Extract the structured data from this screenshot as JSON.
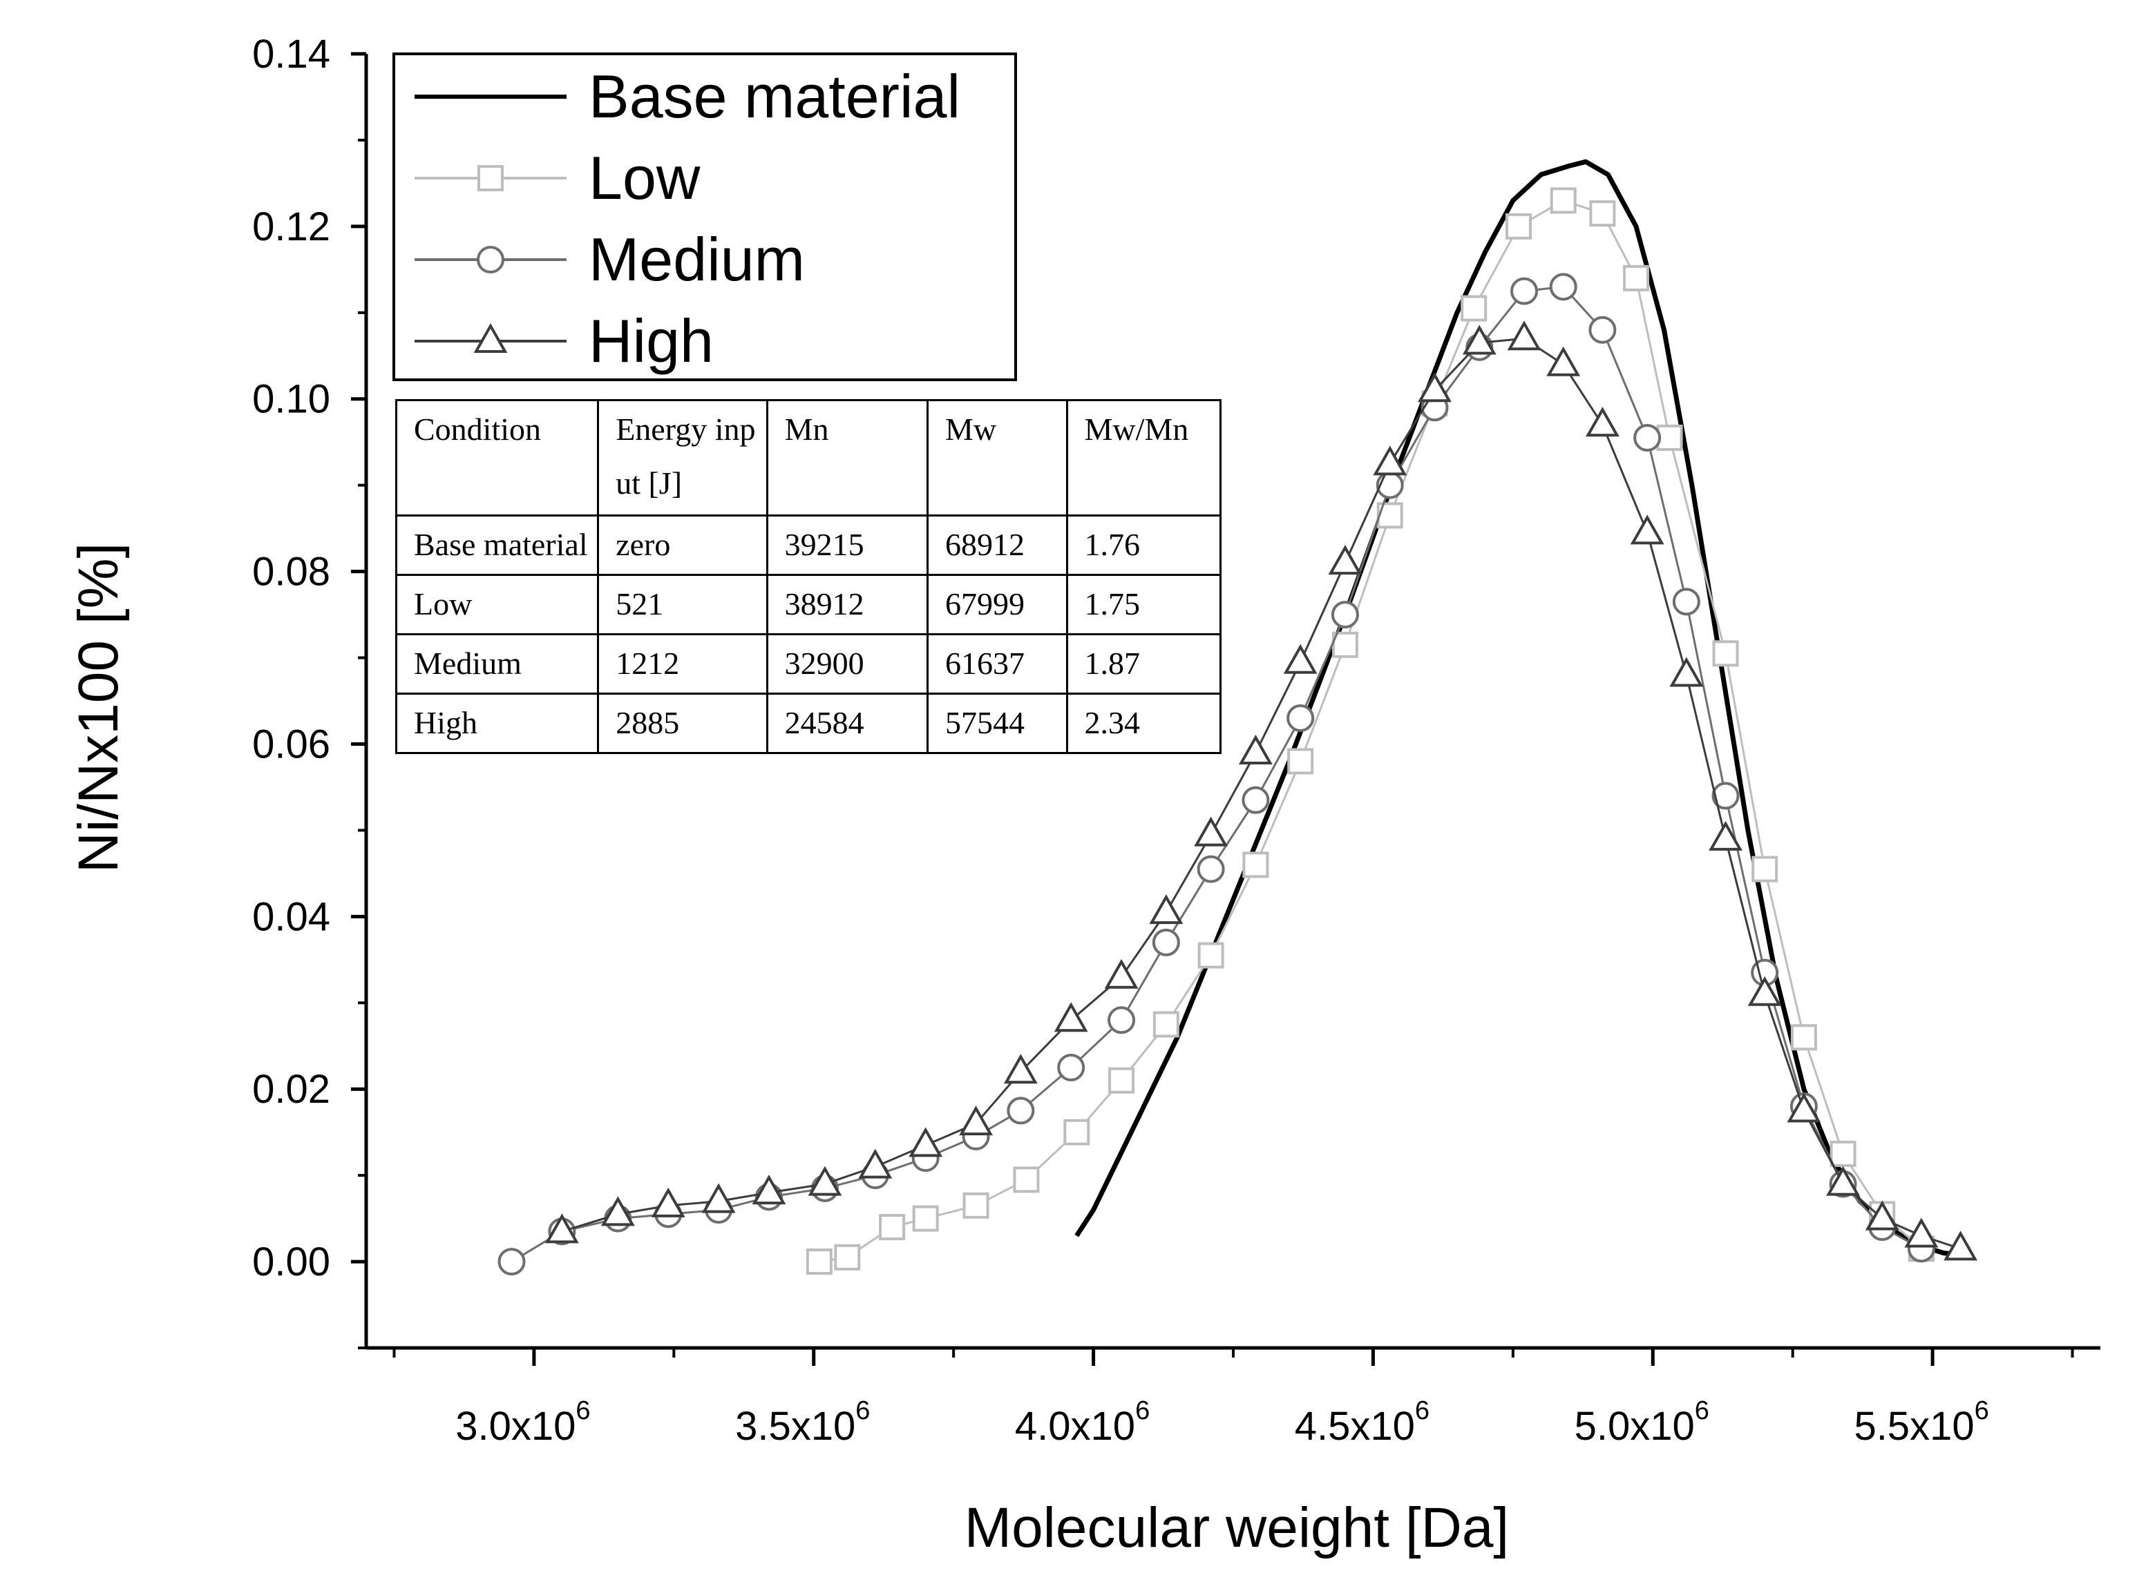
{
  "chart_data": {
    "type": "line",
    "xlabel": "Molecular weight [Da]",
    "ylabel": "Ni/Nx100 [%]",
    "xlim": [
      2700000,
      5800000
    ],
    "ylim": [
      -0.01,
      0.14
    ],
    "x_ticks": [
      {
        "value": 3000000,
        "mantissa": "3.0x10",
        "exp": "6"
      },
      {
        "value": 3500000,
        "mantissa": "3.5x10",
        "exp": "6"
      },
      {
        "value": 4000000,
        "mantissa": "4.0x10",
        "exp": "6"
      },
      {
        "value": 4500000,
        "mantissa": "4.5x10",
        "exp": "6"
      },
      {
        "value": 5000000,
        "mantissa": "5.0x10",
        "exp": "6"
      },
      {
        "value": 5500000,
        "mantissa": "5.5x10",
        "exp": "6"
      }
    ],
    "y_ticks": [
      {
        "value": 0.0,
        "label": "0.00"
      },
      {
        "value": 0.02,
        "label": "0.02"
      },
      {
        "value": 0.04,
        "label": "0.04"
      },
      {
        "value": 0.06,
        "label": "0.06"
      },
      {
        "value": 0.08,
        "label": "0.08"
      },
      {
        "value": 0.1,
        "label": "0.10"
      },
      {
        "value": 0.12,
        "label": "0.12"
      },
      {
        "value": 0.14,
        "label": "0.14"
      }
    ],
    "series": [
      {
        "name": "Base material",
        "marker": "none",
        "color": "#000000",
        "x": [
          3970000,
          4000000,
          4060000,
          4150000,
          4250000,
          4350000,
          4450000,
          4550000,
          4650000,
          4700000,
          4750000,
          4800000,
          4850000,
          4880000,
          4920000,
          4970000,
          5020000,
          5070000,
          5120000,
          5170000,
          5220000,
          5270000,
          5320000,
          5370000,
          5420000,
          5470000,
          5520000,
          5550000
        ],
        "y": [
          0.003,
          0.006,
          0.014,
          0.026,
          0.042,
          0.058,
          0.075,
          0.093,
          0.11,
          0.117,
          0.123,
          0.126,
          0.127,
          0.1275,
          0.126,
          0.12,
          0.108,
          0.09,
          0.07,
          0.05,
          0.033,
          0.02,
          0.012,
          0.007,
          0.004,
          0.002,
          0.001,
          0.0008
        ]
      },
      {
        "name": "Low",
        "marker": "square",
        "color": "#bdbdbd",
        "x": [
          3510000,
          3560000,
          3640000,
          3700000,
          3790000,
          3880000,
          3970000,
          4050000,
          4130000,
          4210000,
          4290000,
          4370000,
          4450000,
          4530000,
          4610000,
          4680000,
          4760000,
          4840000,
          4910000,
          4970000,
          5030000,
          5130000,
          5200000,
          5270000,
          5340000,
          5410000,
          5480000
        ],
        "y": [
          0.0,
          0.0005,
          0.004,
          0.005,
          0.0065,
          0.0095,
          0.015,
          0.021,
          0.0275,
          0.0355,
          0.046,
          0.058,
          0.0715,
          0.0865,
          0.0995,
          0.1105,
          0.12,
          0.123,
          0.1215,
          0.114,
          0.0955,
          0.0705,
          0.0455,
          0.026,
          0.0125,
          0.0055,
          0.0015
        ]
      },
      {
        "name": "Medium",
        "marker": "circle",
        "color": "#6e6e6e",
        "x": [
          2960000,
          3050000,
          3150000,
          3240000,
          3330000,
          3420000,
          3520000,
          3610000,
          3700000,
          3790000,
          3870000,
          3960000,
          4050000,
          4130000,
          4210000,
          4290000,
          4370000,
          4450000,
          4530000,
          4610000,
          4690000,
          4770000,
          4840000,
          4910000,
          4990000,
          5060000,
          5130000,
          5200000,
          5270000,
          5340000,
          5410000,
          5480000
        ],
        "y": [
          0.0,
          0.0035,
          0.005,
          0.0055,
          0.006,
          0.0075,
          0.0085,
          0.01,
          0.012,
          0.0145,
          0.0175,
          0.0225,
          0.028,
          0.037,
          0.0455,
          0.0535,
          0.063,
          0.075,
          0.09,
          0.099,
          0.106,
          0.1125,
          0.113,
          0.108,
          0.0955,
          0.0765,
          0.054,
          0.0335,
          0.018,
          0.009,
          0.004,
          0.0015
        ]
      },
      {
        "name": "High",
        "marker": "triangle",
        "color": "#3c3c3c",
        "x": [
          3050000,
          3150000,
          3240000,
          3330000,
          3420000,
          3520000,
          3610000,
          3700000,
          3790000,
          3870000,
          3960000,
          4050000,
          4130000,
          4210000,
          4290000,
          4370000,
          4450000,
          4530000,
          4610000,
          4690000,
          4770000,
          4840000,
          4910000,
          4990000,
          5060000,
          5130000,
          5200000,
          5270000,
          5340000,
          5410000,
          5480000,
          5550000
        ],
        "y": [
          0.0035,
          0.0055,
          0.0065,
          0.007,
          0.008,
          0.009,
          0.011,
          0.0135,
          0.016,
          0.022,
          0.028,
          0.033,
          0.0405,
          0.0495,
          0.059,
          0.0695,
          0.081,
          0.0925,
          0.101,
          0.1065,
          0.107,
          0.104,
          0.097,
          0.0845,
          0.068,
          0.049,
          0.031,
          0.0175,
          0.009,
          0.005,
          0.003,
          0.0015
        ]
      }
    ]
  },
  "table": {
    "header": [
      "Condition",
      "Energy input [J]",
      "Mn",
      "Mw",
      "Mw/Mn"
    ],
    "rows": [
      [
        "Base material",
        "zero",
        "39215",
        "68912",
        "1.76"
      ],
      [
        "Low",
        "521",
        "38912",
        "67999",
        "1.75"
      ],
      [
        "Medium",
        "1212",
        "32900",
        "61637",
        "1.87"
      ],
      [
        "High",
        "2885",
        "24584",
        "57544",
        "2.34"
      ]
    ]
  }
}
